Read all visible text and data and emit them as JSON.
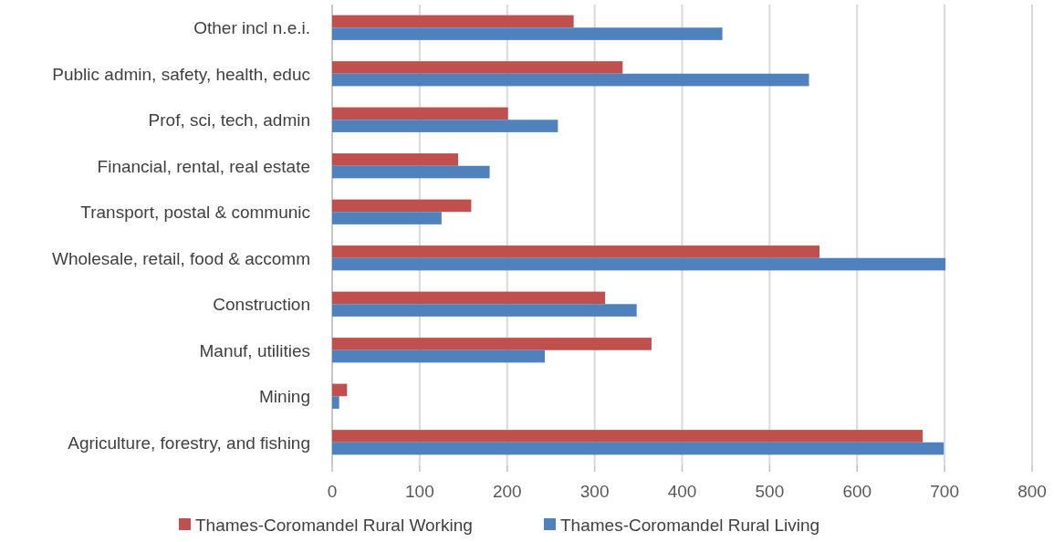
{
  "chart_data": {
    "type": "bar",
    "orientation": "horizontal",
    "categories": [
      "Other incl n.e.i.",
      "Public admin, safety, health, educ",
      "Prof, sci, tech, admin",
      "Financial, rental, real estate",
      "Transport, postal & communic",
      "Wholesale, retail, food & accomm",
      "Construction",
      "Manuf, utilities",
      "Mining",
      "Agriculture, forestry, and fishing"
    ],
    "series": [
      {
        "name": "Thames-Coromandel Rural Working",
        "color": "#c0504d",
        "values": [
          276,
          332,
          201,
          144,
          159,
          557,
          312,
          365,
          17,
          675
        ]
      },
      {
        "name": "Thames-Coromandel Rural Living",
        "color": "#4f81bd",
        "values": [
          446,
          545,
          258,
          180,
          125,
          701,
          348,
          243,
          8,
          699
        ]
      }
    ],
    "xlim": [
      0,
      800
    ],
    "xticks": [
      0,
      100,
      200,
      300,
      400,
      500,
      600,
      700,
      800
    ],
    "grid": "x",
    "legend": "bottom"
  }
}
